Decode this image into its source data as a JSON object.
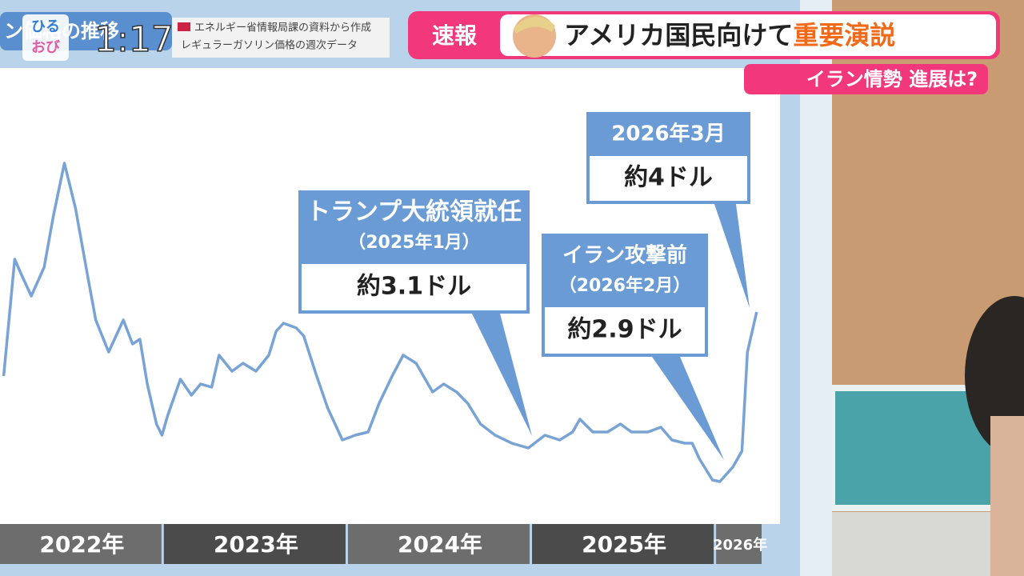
{
  "clock": "1:17",
  "logo": [
    "ひる",
    "おび"
  ],
  "board_title": "ン価格の推移",
  "source": [
    "エネルギー省情報局課の資料から作成",
    "レギュラーガソリン価格の週次データ"
  ],
  "banner": {
    "tag": "速報",
    "headline": "アメリカ国民向けて",
    "emphasis": "重要演説",
    "sub": "イラン情勢 進展は?"
  },
  "chart_data": {
    "type": "line",
    "x": [
      2022.13,
      2022.19,
      2022.22,
      2022.28,
      2022.35,
      2022.4,
      2022.46,
      2022.52,
      2022.59,
      2022.63,
      2022.7,
      2022.76,
      2022.78,
      2022.83,
      2022.87,
      2022.91,
      2022.96,
      2022.99,
      2023.02,
      2023.09,
      2023.15,
      2023.2,
      2023.26,
      2023.3,
      2023.37,
      2023.43,
      2023.5,
      2023.57,
      2023.61,
      2023.65,
      2023.72,
      2023.76,
      2023.83,
      2023.89,
      2023.97,
      2024.04,
      2024.11,
      2024.17,
      2024.24,
      2024.3,
      2024.37,
      2024.46,
      2024.52,
      2024.59,
      2024.65,
      2024.72,
      2024.8,
      2024.89,
      2024.98,
      2025.07,
      2025.15,
      2025.22,
      2025.26,
      2025.33,
      2025.41,
      2025.48,
      2025.54,
      2025.63,
      2025.7,
      2025.76,
      2025.83,
      2025.87,
      2025.91,
      2025.98,
      2026.02,
      2026.09,
      2026.14,
      2026.17,
      2026.22
    ],
    "series": [
      {
        "color": "#78a3d4",
        "values": [
          3.55,
          4.28,
          4.2,
          4.05,
          4.23,
          4.55,
          4.88,
          4.6,
          4.15,
          3.9,
          3.7,
          3.85,
          3.9,
          3.75,
          3.78,
          3.5,
          3.25,
          3.18,
          3.3,
          3.53,
          3.43,
          3.5,
          3.48,
          3.68,
          3.58,
          3.63,
          3.58,
          3.68,
          3.83,
          3.88,
          3.85,
          3.8,
          3.55,
          3.35,
          3.15,
          3.18,
          3.2,
          3.38,
          3.55,
          3.68,
          3.63,
          3.45,
          3.5,
          3.45,
          3.38,
          3.25,
          3.18,
          3.13,
          3.1,
          3.18,
          3.15,
          3.2,
          3.28,
          3.2,
          3.2,
          3.25,
          3.2,
          3.2,
          3.23,
          3.15,
          3.13,
          3.13,
          3.03,
          2.9,
          2.89,
          2.98,
          3.08,
          3.7,
          3.95
        ]
      }
    ],
    "xlim": [
      2022.11,
      2026.26
    ],
    "ylim": [
      2.65,
      5.45
    ],
    "xticks": [
      {
        "value": 2022,
        "label": "2022年"
      },
      {
        "value": 2023,
        "label": "2023年"
      },
      {
        "value": 2024,
        "label": "2024年"
      },
      {
        "value": 2025,
        "label": "2025年"
      },
      {
        "value": 2026,
        "label": "2026年"
      }
    ],
    "annotations": [
      {
        "lines": [
          "トランプ大統領就任",
          "（2025年1月）",
          "約3.1ドル"
        ]
      },
      {
        "lines": [
          "イラン攻撃前",
          "（2026年2月）",
          "約2.9ドル"
        ]
      },
      {
        "lines": [
          "2026年3月",
          "約4ドル"
        ]
      }
    ]
  }
}
